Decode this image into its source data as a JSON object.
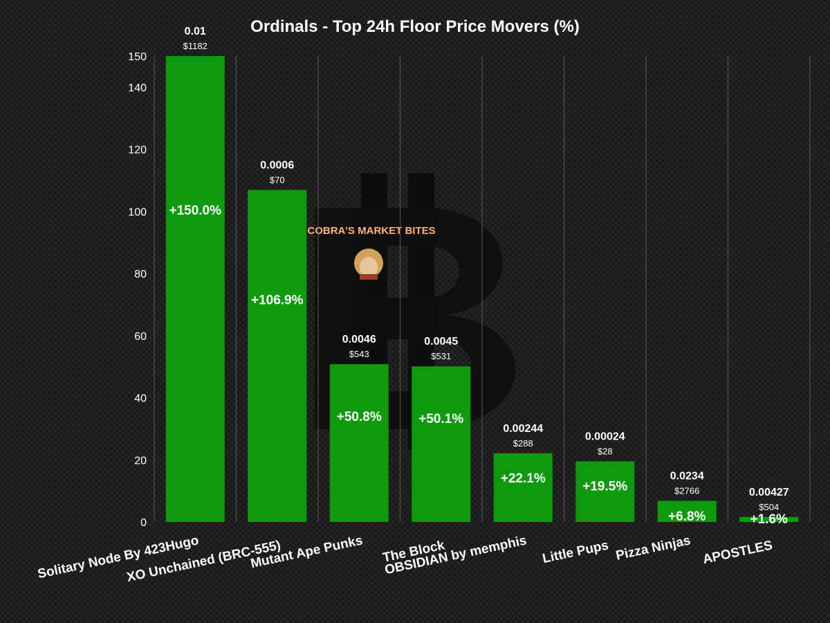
{
  "chart_data": {
    "type": "bar",
    "title": "Ordinals - Top 24h Floor Price Movers (%)",
    "categories": [
      "Solitary Node By 423Hugo",
      "XO Unchained (BRC-555)",
      "Mutant Ape Punks",
      "The Block",
      "OBSIDIAN by memphis",
      "Little Pups",
      "Pizza Ninjas",
      "APOSTLES"
    ],
    "values": [
      150.0,
      106.9,
      50.8,
      50.1,
      22.1,
      19.5,
      6.8,
      1.6
    ],
    "value_labels": [
      "+150.0%",
      "+106.9%",
      "+50.8%",
      "+50.1%",
      "+22.1%",
      "+19.5%",
      "+6.8%",
      "+1.6%"
    ],
    "floor_btc": [
      "0.01",
      "0.0006",
      "0.0046",
      "0.0045",
      "0.00244",
      "0.00024",
      "0.0234",
      "0.00427"
    ],
    "floor_usd": [
      "$1182",
      "$70",
      "$543",
      "$531",
      "$288",
      "$28",
      "$2766",
      "$504"
    ],
    "yticks": [
      0,
      20,
      40,
      60,
      80,
      100,
      120,
      140,
      150
    ],
    "ylim": [
      0,
      150
    ],
    "xlabel": "",
    "ylabel": "",
    "grid": true,
    "bar_color": "#0d9a0d"
  },
  "watermark": {
    "text": "COBRA'S MARKET BITES",
    "logo": "bitcoin-logo"
  }
}
